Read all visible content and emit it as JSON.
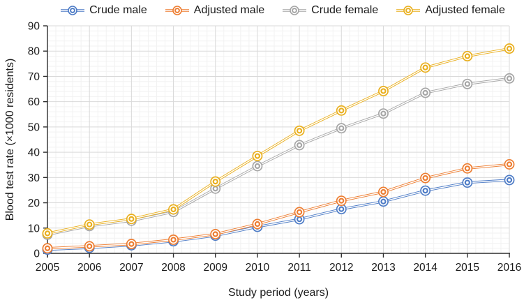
{
  "figure": {
    "background": "#ffffff",
    "text_color": "#1a1a1a",
    "axis_color": "#2e2e2e",
    "grid_major_color": "#d9d9d9",
    "grid_minor_color": "#f2f2f2"
  },
  "axes": {
    "xlabel": "Study period (years)",
    "ylabel": "Blood test rate (×1000 residents)"
  },
  "chart_data": {
    "type": "line",
    "title": "",
    "xlabel": "Study period (years)",
    "ylabel": "Blood test rate (×1000 residents)",
    "x": [
      2005,
      2006,
      2007,
      2008,
      2009,
      2010,
      2011,
      2012,
      2013,
      2014,
      2015,
      2016
    ],
    "series": [
      {
        "name": "Crude male",
        "color": "#4e7cc6",
        "values": [
          1.5,
          2.2,
          3.2,
          4.8,
          7.0,
          10.5,
          13.5,
          17.5,
          20.5,
          24.8,
          28.0,
          29.0
        ]
      },
      {
        "name": "Adjusted male",
        "color": "#ed7d31",
        "values": [
          2.0,
          2.8,
          3.7,
          5.4,
          7.6,
          11.6,
          16.3,
          20.8,
          24.3,
          29.8,
          33.6,
          35.2
        ]
      },
      {
        "name": "Crude female",
        "color": "#a6a6a6",
        "values": [
          7.4,
          10.8,
          12.9,
          16.4,
          25.6,
          34.5,
          42.8,
          49.5,
          55.3,
          63.5,
          67.0,
          69.2
        ]
      },
      {
        "name": "Adjusted female",
        "color": "#e9af1e",
        "values": [
          7.9,
          11.4,
          13.6,
          17.4,
          28.4,
          38.5,
          48.5,
          56.5,
          64.2,
          73.5,
          78.0,
          81.0
        ]
      }
    ],
    "ylim": [
      0,
      90
    ],
    "yticks": [
      0,
      10,
      20,
      30,
      40,
      50,
      60,
      70,
      80,
      90
    ],
    "grid": true,
    "minor_grid": true,
    "legend_position": "top",
    "marker": "double-ring-circle"
  }
}
